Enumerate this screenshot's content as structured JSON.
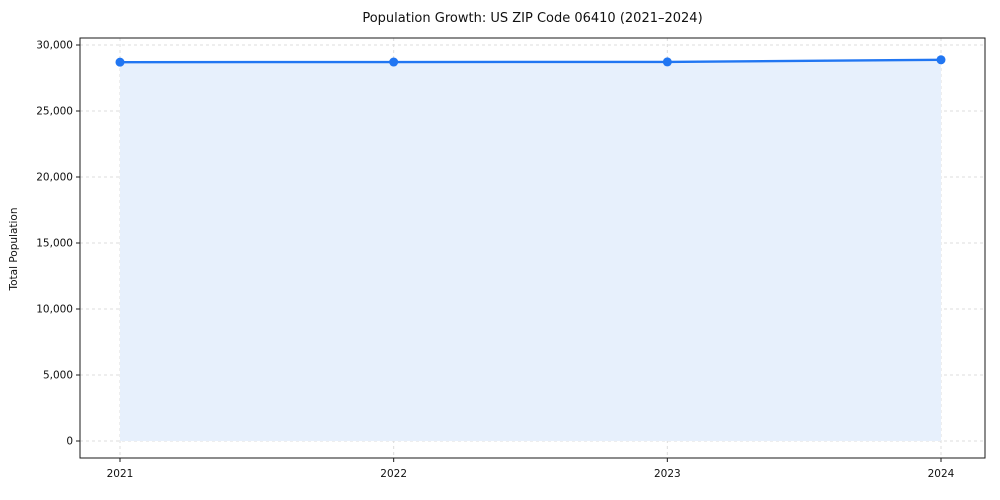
{
  "chart": {
    "title": "Population Growth: US ZIP Code 06410 (2021–2024)",
    "ylabel": "Total Population"
  },
  "chart_data": {
    "type": "line",
    "title": "Population Growth: US ZIP Code 06410 (2021–2024)",
    "xlabel": "",
    "ylabel": "Total Population",
    "x": [
      2021,
      2022,
      2023,
      2024
    ],
    "series": [
      {
        "name": "Total Population",
        "values": [
          28700,
          28710,
          28720,
          28880
        ]
      }
    ],
    "ylim": [
      0,
      30000
    ],
    "ytick_step": 5000,
    "ytick_labels": [
      "0",
      "5,000",
      "10,000",
      "15,000",
      "20,000",
      "25,000",
      "30,000"
    ],
    "grid": true,
    "legend": "none",
    "line_color": "#2176f2",
    "marker_color": "#2176f2",
    "fill_color": "#e7f0fc",
    "frame_color": "#1a1a1a"
  }
}
